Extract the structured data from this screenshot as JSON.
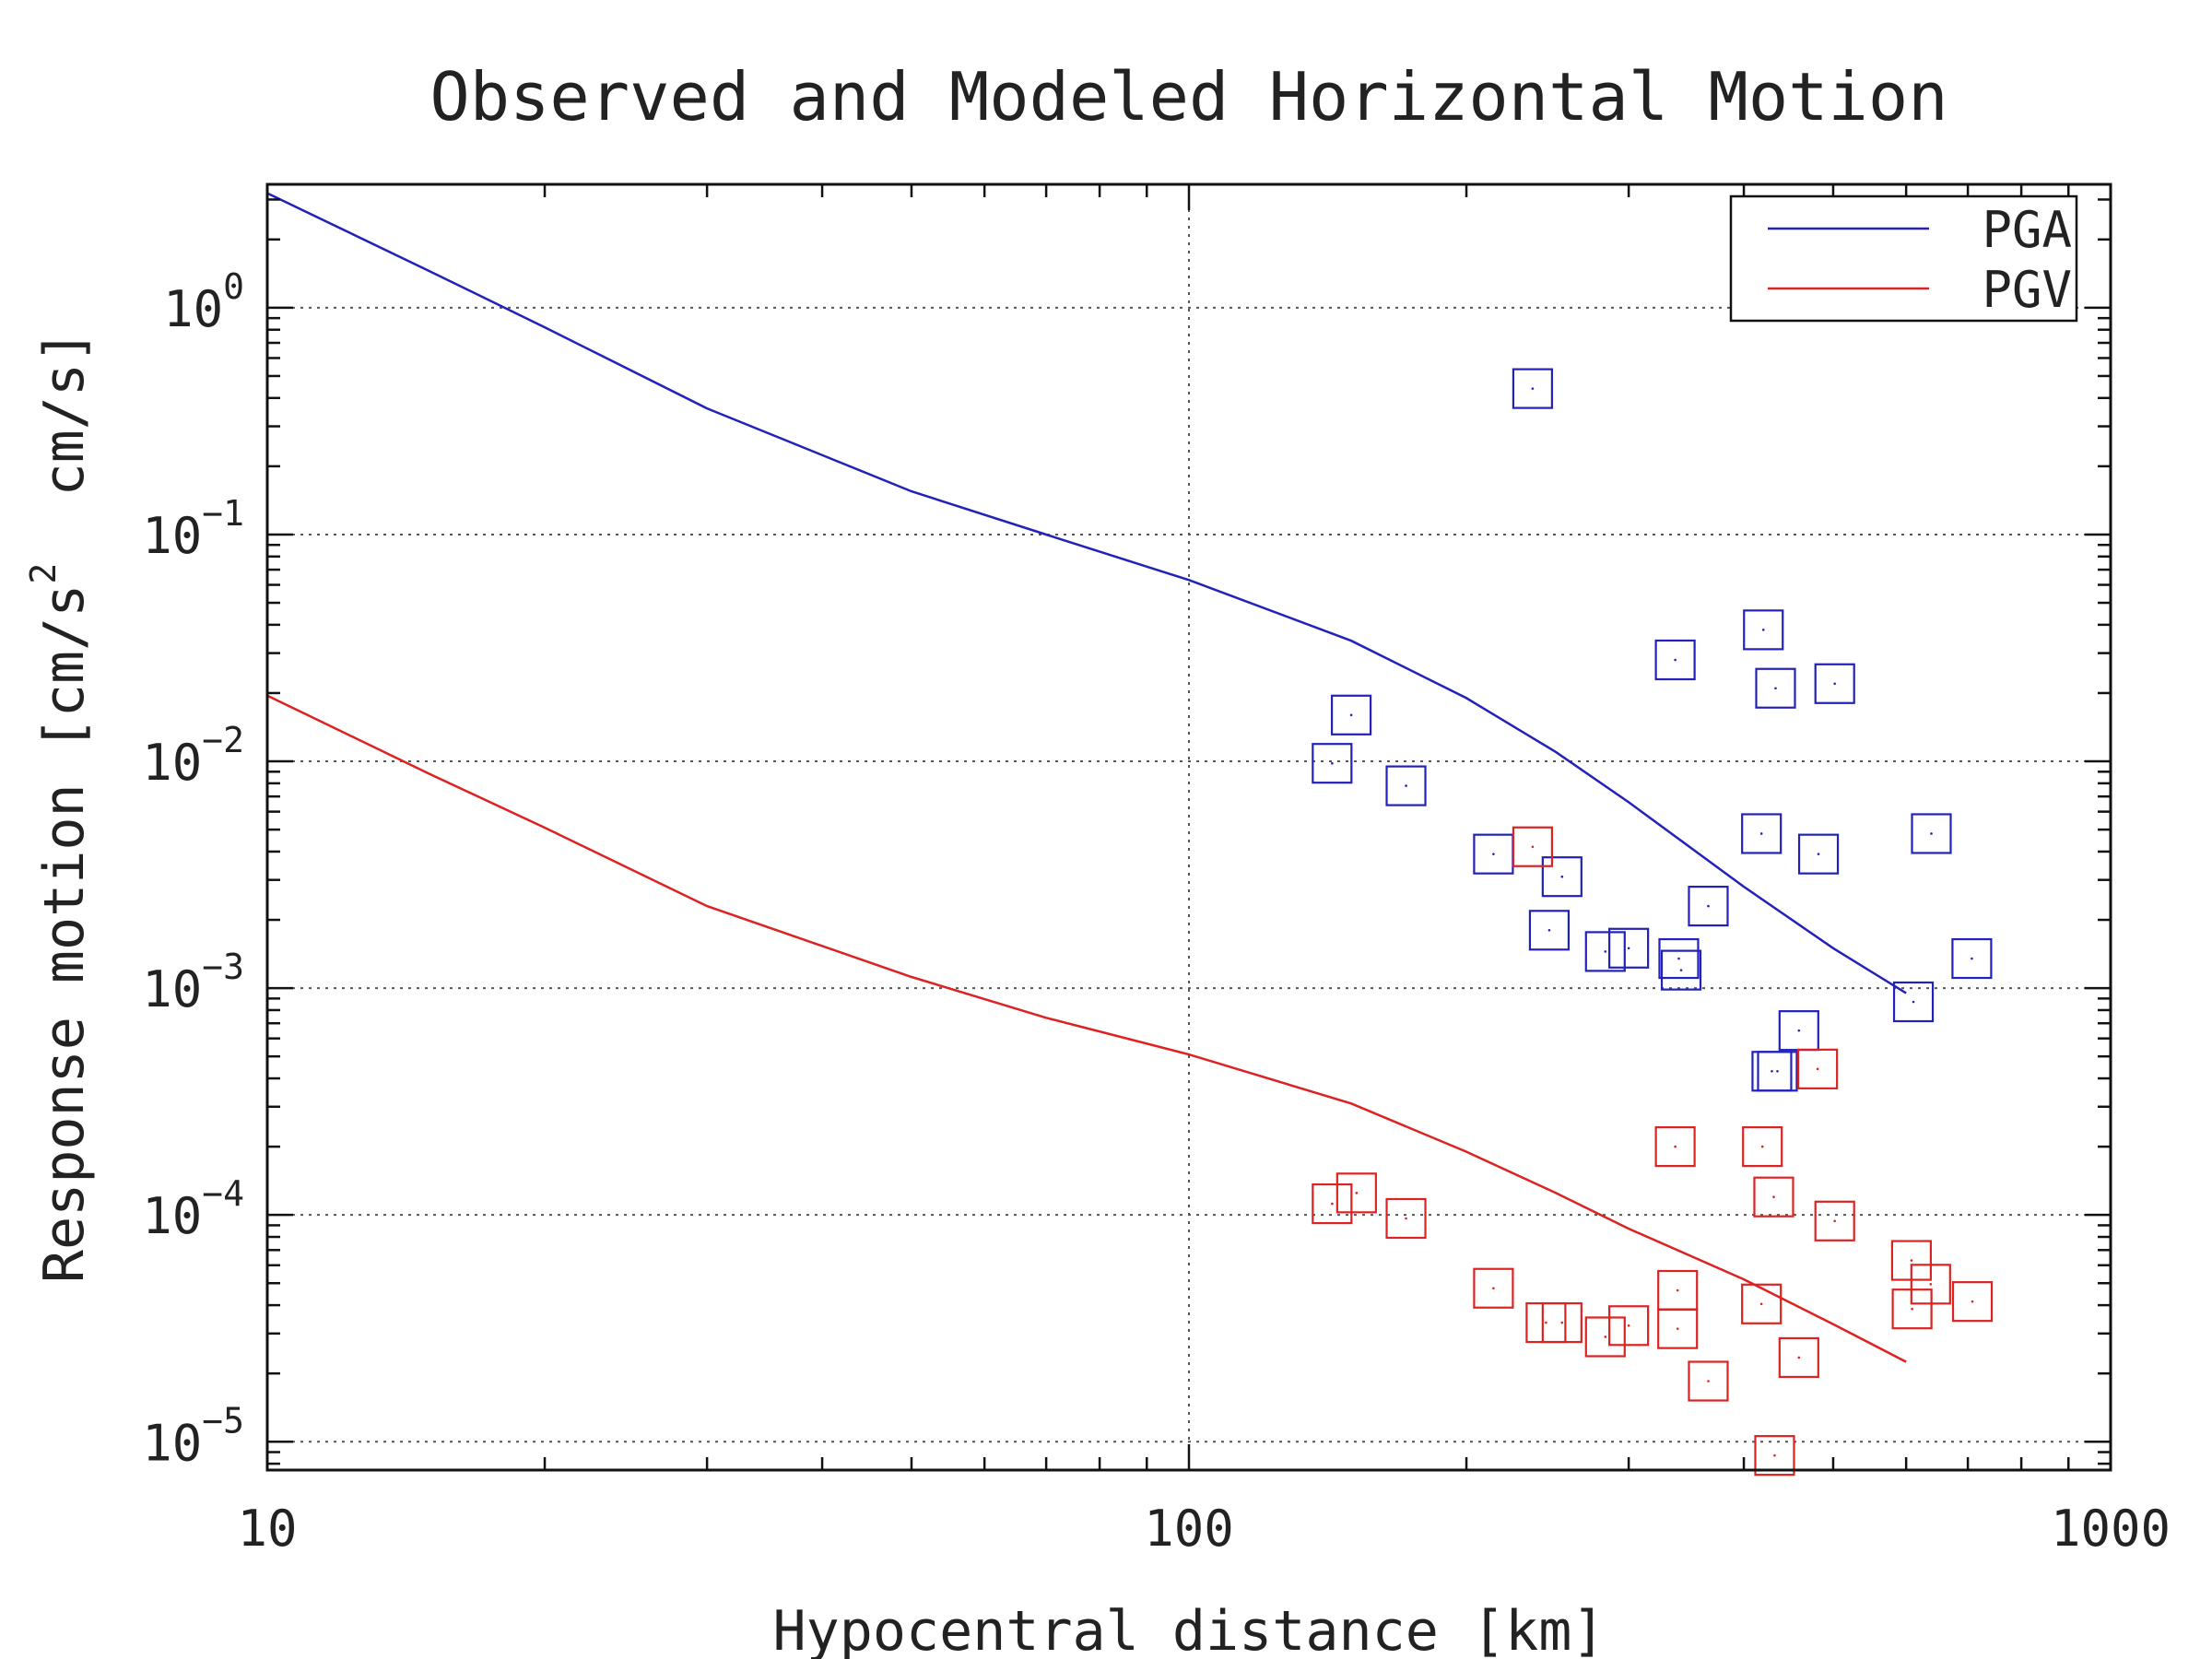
{
  "chart_data": {
    "type": "scatter",
    "title": "Observed and Modeled Horizontal Motion",
    "xlabel": "Hypocentral distance [km]",
    "ylabel": {
      "prefix": "Response motion [cm/s",
      "superscript": "2",
      "suffix": "  cm/s]"
    },
    "x_scale": "log",
    "y_scale": "log",
    "xlim": [
      10,
      1000
    ],
    "ylim": [
      7.5e-06,
      3.5
    ],
    "grid": true,
    "legend_placement": "top-right",
    "x_ticks": [
      {
        "value": 10,
        "label": "10"
      },
      {
        "value": 100,
        "label": "100"
      },
      {
        "value": 1000,
        "label": "1000"
      }
    ],
    "y_ticks": [
      {
        "value": 1,
        "base": "10",
        "exp": "0"
      },
      {
        "value": 0.1,
        "base": "10",
        "exp": "−1"
      },
      {
        "value": 0.01,
        "base": "10",
        "exp": "−2"
      },
      {
        "value": 0.001,
        "base": "10",
        "exp": "−3"
      },
      {
        "value": 0.0001,
        "base": "10",
        "exp": "−4"
      },
      {
        "value": 1e-05,
        "base": "10",
        "exp": "−5"
      }
    ],
    "series": [
      {
        "name": "PGA",
        "color": "#2222bb",
        "model": {
          "x": [
            10,
            15,
            20,
            30,
            50,
            70,
            100,
            150,
            200,
            250,
            300,
            400,
            500,
            600
          ],
          "y": [
            3.2,
            1.45,
            0.82,
            0.36,
            0.155,
            0.1,
            0.063,
            0.034,
            0.019,
            0.011,
            0.0066,
            0.0028,
            0.0015,
            0.00095
          ]
        },
        "observed": {
          "x": [
            143,
            150,
            172,
            214,
            236,
            246,
            254,
            283,
            300,
            337,
            340,
            342,
            366,
            418,
            420,
            429,
            433,
            435,
            459,
            482,
            502,
            611,
            639,
            707
          ],
          "y": [
            0.0098,
            0.016,
            0.0078,
            0.0039,
            0.44,
            0.0018,
            0.0031,
            0.00145,
            0.0015,
            0.028,
            0.00135,
            0.0012,
            0.0023,
            0.0048,
            0.038,
            0.00043,
            0.021,
            0.00043,
            0.00065,
            0.0039,
            0.022,
            0.00087,
            0.0048,
            0.00135
          ]
        }
      },
      {
        "name": "PGV",
        "color": "#dd2222",
        "model": {
          "x": [
            10,
            15,
            20,
            30,
            50,
            70,
            100,
            150,
            200,
            250,
            300,
            400,
            500,
            600
          ],
          "y": [
            0.0195,
            0.0088,
            0.0051,
            0.0023,
            0.00112,
            0.00074,
            0.00051,
            0.00031,
            0.00019,
            0.000125,
            8.7e-05,
            5.2e-05,
            3.3e-05,
            2.25e-05
          ]
        },
        "observed": {
          "x": [
            143,
            152,
            172,
            214,
            236,
            244,
            254,
            283,
            300,
            337,
            339,
            339,
            366,
            418,
            419,
            432,
            431,
            459,
            481,
            502,
            608,
            609,
            638,
            708
          ],
          "y": [
            0.000112,
            0.000125,
            9.65e-05,
            4.75e-05,
            0.0042,
            3.35e-05,
            3.35e-05,
            2.9e-05,
            3.25e-05,
            0.0002,
            4.65e-05,
            3.15e-05,
            1.85e-05,
            4.05e-05,
            0.0002,
            8.7e-06,
            0.00012,
            2.35e-05,
            0.00044,
            9.4e-05,
            6.3e-05,
            3.85e-05,
            4.95e-05,
            4.15e-05
          ]
        }
      }
    ]
  }
}
